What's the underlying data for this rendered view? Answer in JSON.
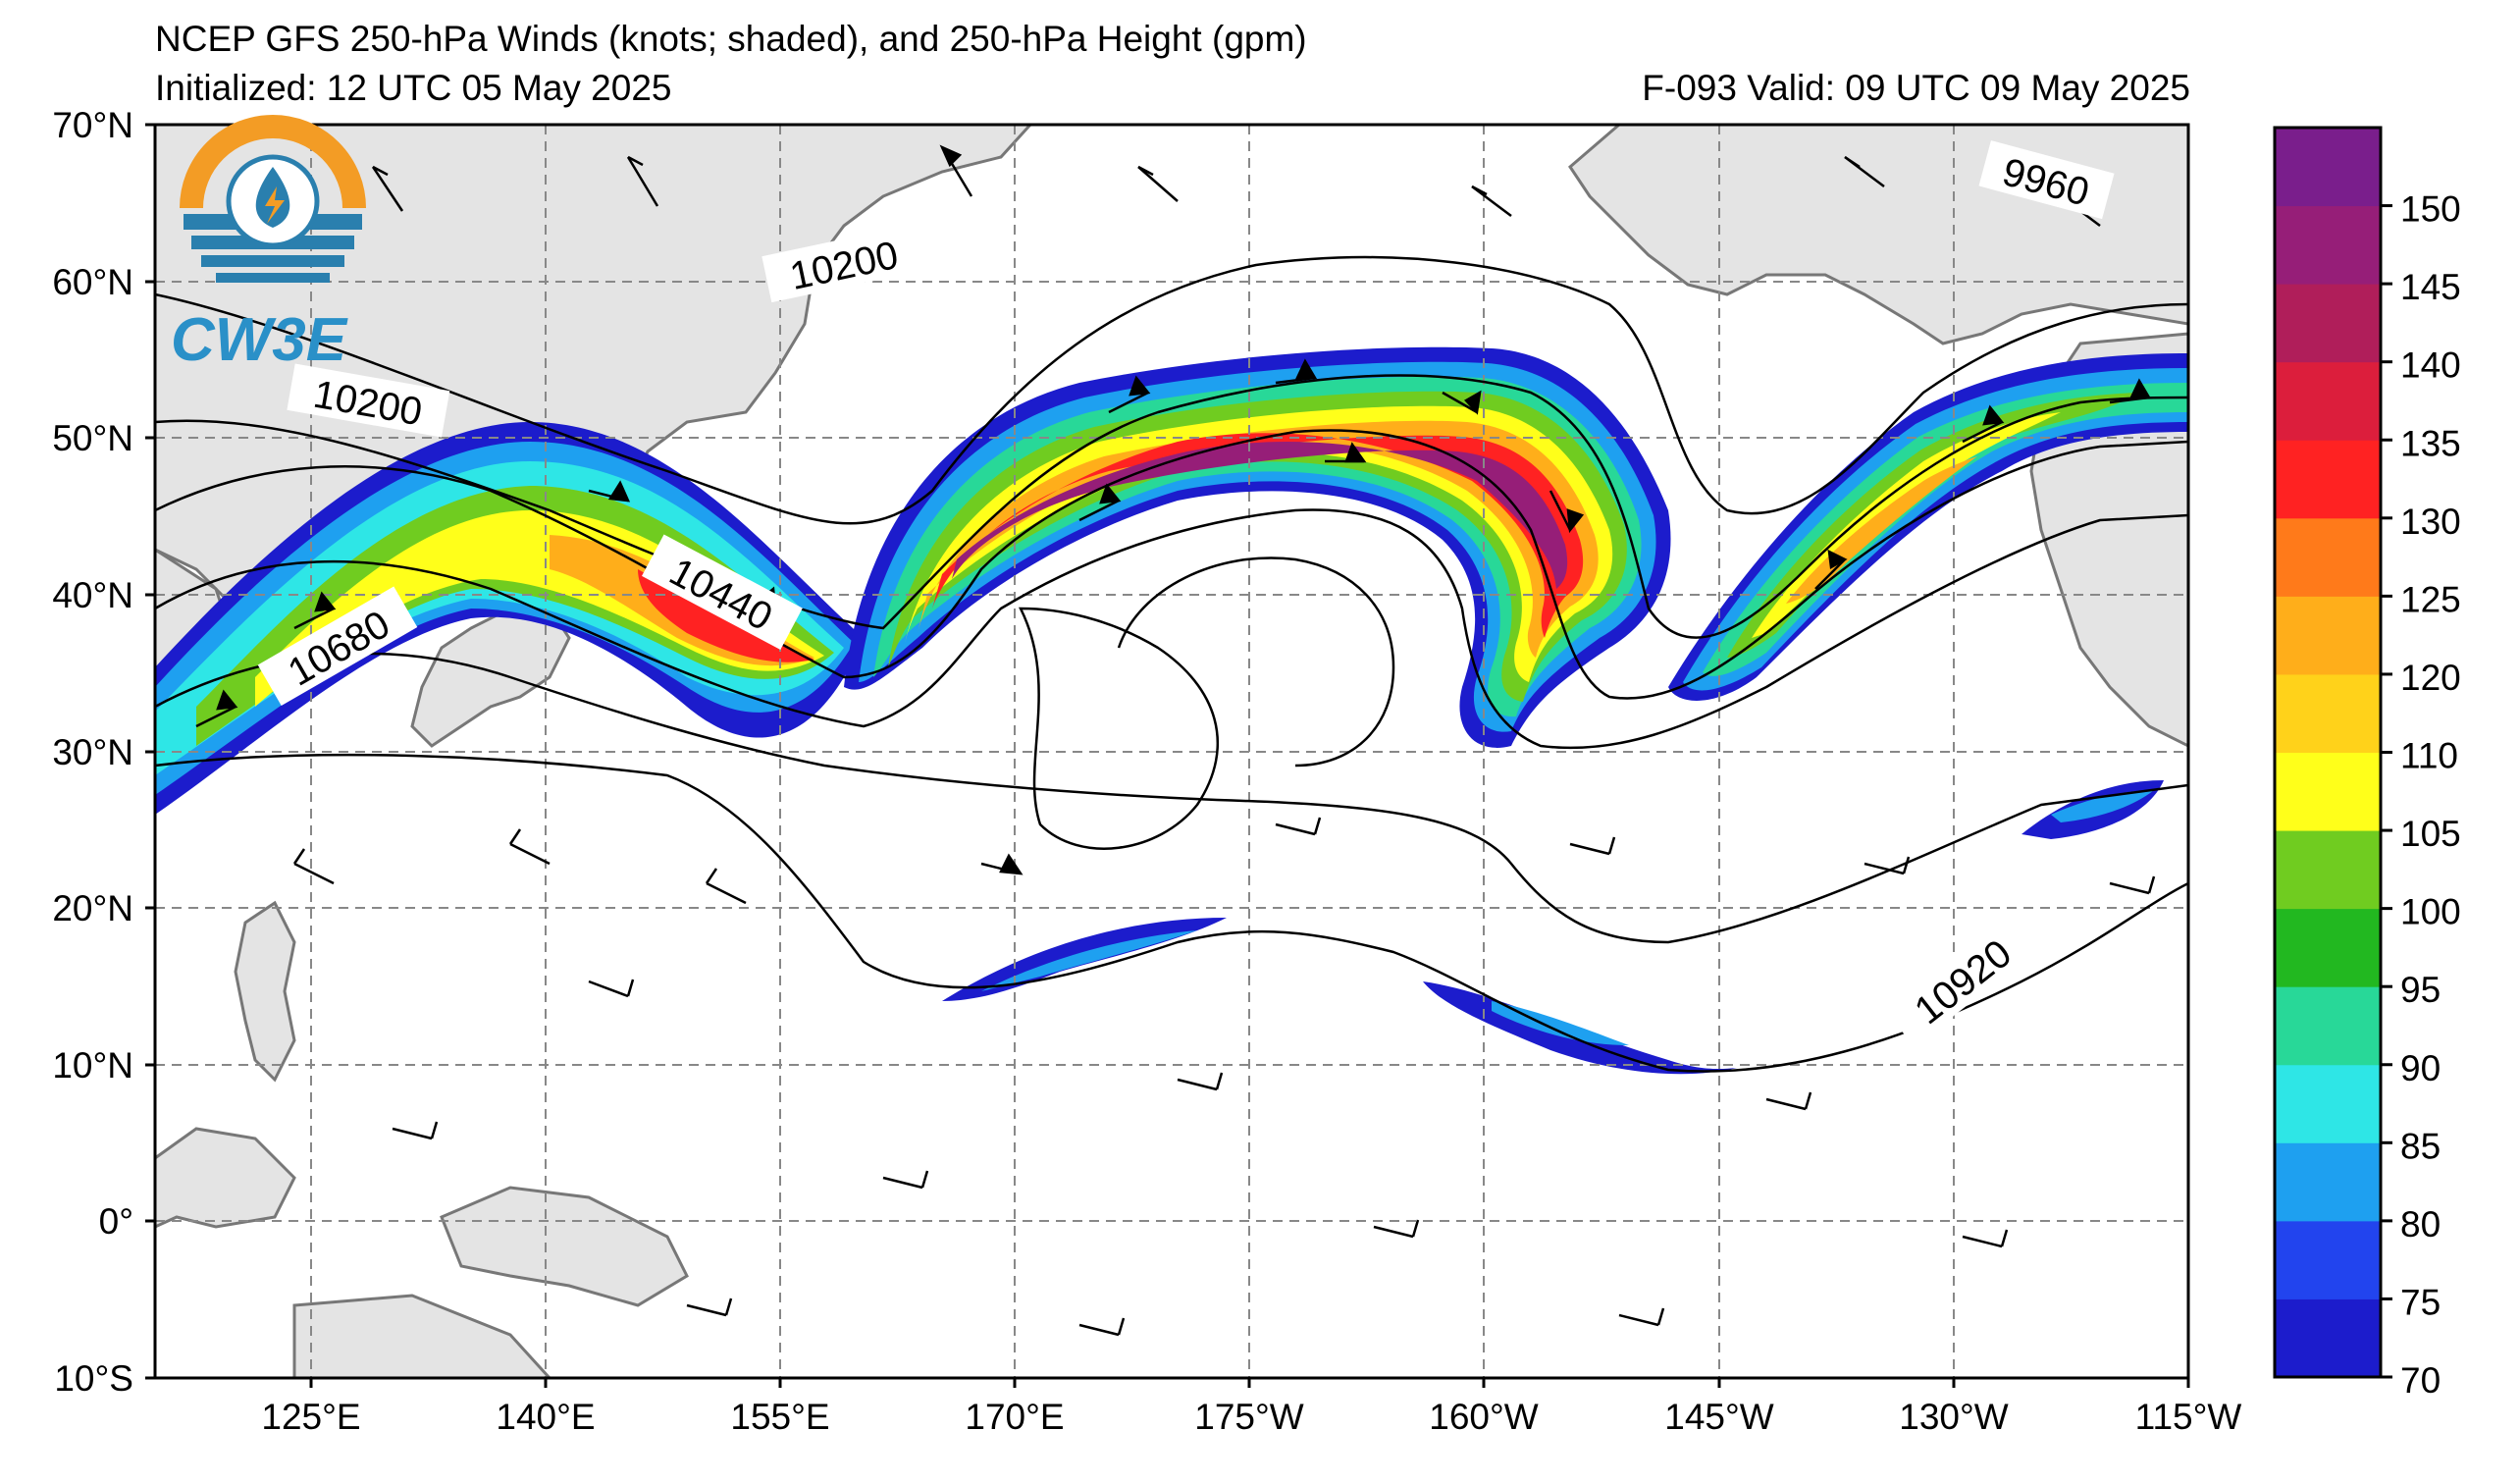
{
  "header": {
    "title": "NCEP GFS 250-hPa Winds (knots; shaded), and 250-hPa Height (gpm)",
    "initialized": "Initialized: 12 UTC 05 May 2025",
    "valid": "F-093  Valid: 09 UTC 09 May 2025"
  },
  "logo": {
    "text": "CW3E"
  },
  "axes": {
    "lat_labels": [
      "70°N",
      "60°N",
      "50°N",
      "40°N",
      "30°N",
      "20°N",
      "10°N",
      "0°",
      "10°S"
    ],
    "lon_labels": [
      "125°E",
      "140°E",
      "155°E",
      "170°E",
      "175°W",
      "160°W",
      "145°W",
      "130°W",
      "115°W"
    ]
  },
  "contour_labels": [
    "10200",
    "10200",
    "9960",
    "10440",
    "10680",
    "10920"
  ],
  "colorbar": {
    "levels": [
      "70",
      "75",
      "80",
      "85",
      "90",
      "95",
      "100",
      "105",
      "110",
      "120",
      "125",
      "130",
      "135",
      "140",
      "145",
      "150"
    ],
    "colors": [
      "#1c1ccc",
      "#2244ee",
      "#1ea0f0",
      "#2ee6e6",
      "#28d898",
      "#22b820",
      "#70cc20",
      "#ffff1a",
      "#ffd21a",
      "#ffae1a",
      "#ff7a1a",
      "#ff2222",
      "#dc1e3c",
      "#b01e5a",
      "#961e78",
      "#7a1e8c"
    ]
  },
  "map_colors": {
    "land": "#e4e4e4",
    "coast": "#777777",
    "grid": "#888888"
  }
}
